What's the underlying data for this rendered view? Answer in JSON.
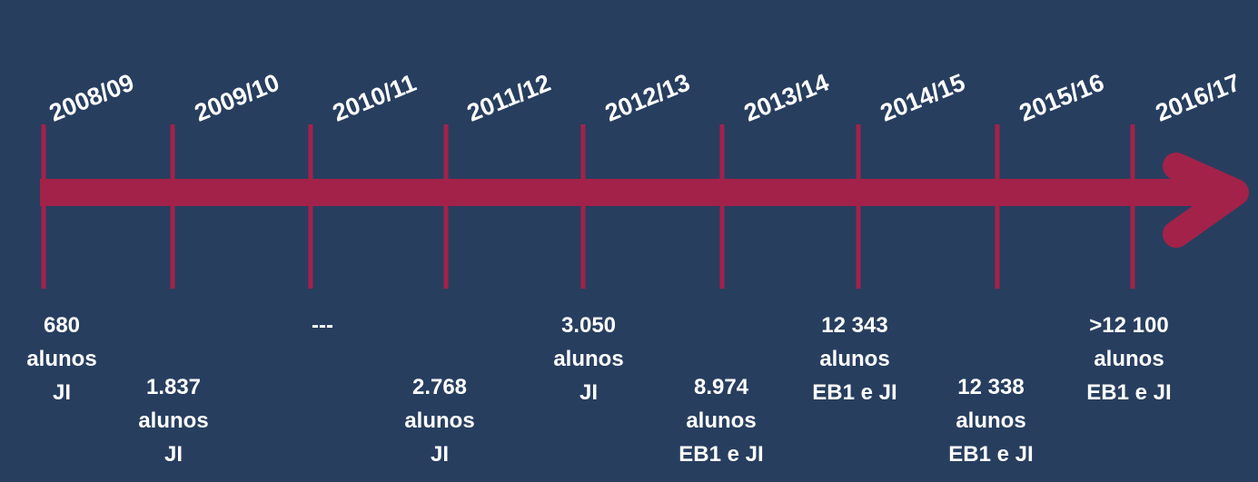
{
  "colors": {
    "background": "#273e5f",
    "timeline": "#a3224a",
    "text": "#ffffff"
  },
  "years": [
    "2008/09",
    "2009/10",
    "2010/11",
    "2011/12",
    "2012/13",
    "2013/14",
    "2014/15",
    "2015/16",
    "2016/17"
  ],
  "entries": [
    {
      "lines": [
        "680",
        "alunos",
        "JI"
      ]
    },
    {
      "lines": [
        "1.837",
        "alunos",
        "JI"
      ]
    },
    {
      "lines": [
        "---"
      ]
    },
    {
      "lines": [
        "2.768",
        "alunos",
        "JI"
      ]
    },
    {
      "lines": [
        "3.050",
        "alunos",
        "JI"
      ]
    },
    {
      "lines": [
        "8.974",
        "alunos",
        "EB1 e JI"
      ]
    },
    {
      "lines": [
        "12 343",
        "alunos",
        "EB1 e JI"
      ]
    },
    {
      "lines": [
        "12 338",
        "alunos",
        "EB1 e JI"
      ]
    },
    {
      "lines": [
        ">12 100",
        "alunos",
        "EB1 e JI"
      ]
    }
  ]
}
